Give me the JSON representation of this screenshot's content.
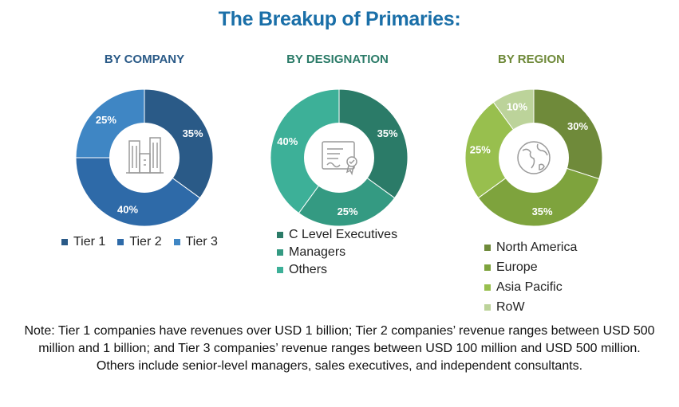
{
  "title": "The Breakup of Primaries:",
  "chart_data": [
    {
      "type": "pie",
      "title": "BY COMPANY",
      "categories": [
        "Tier 1",
        "Tier 2",
        "Tier 3"
      ],
      "values": [
        35,
        40,
        25
      ],
      "labels": [
        "35%",
        "40%",
        "25%"
      ],
      "colors": [
        "#2a5a87",
        "#2e6aa8",
        "#3f86c4"
      ],
      "title_color": "#2a5a87",
      "legend": "bottom",
      "center_icon": "buildings-icon"
    },
    {
      "type": "pie",
      "title": "BY DESIGNATION",
      "categories": [
        "C Level Executives",
        "Managers",
        "Others"
      ],
      "values": [
        35,
        25,
        40
      ],
      "labels": [
        "35%",
        "25%",
        "40%"
      ],
      "colors": [
        "#2b7b68",
        "#349a82",
        "#3db098"
      ],
      "title_color": "#2b7b68",
      "legend": "bottom",
      "center_icon": "certificate-icon"
    },
    {
      "type": "pie",
      "title": "BY REGION",
      "categories": [
        "North America",
        "Europe",
        "Asia Pacific",
        "RoW"
      ],
      "values": [
        30,
        35,
        25,
        10
      ],
      "labels": [
        "30%",
        "35%",
        "25%",
        "10%"
      ],
      "colors": [
        "#6f8a3a",
        "#7ea33d",
        "#98bf4e",
        "#bcd39a"
      ],
      "title_color": "#6f8a3a",
      "legend": "bottom",
      "center_icon": "globe-icon"
    }
  ],
  "notes": [
    "Note: Tier 1 companies have revenues over USD 1 billion; Tier 2 companies’ revenue ranges between USD 500 million and 1 billion; and Tier 3 companies’ revenue ranges between USD 100 million and USD 500 million.",
    "Others include senior-level managers, sales executives, and independent consultants."
  ]
}
